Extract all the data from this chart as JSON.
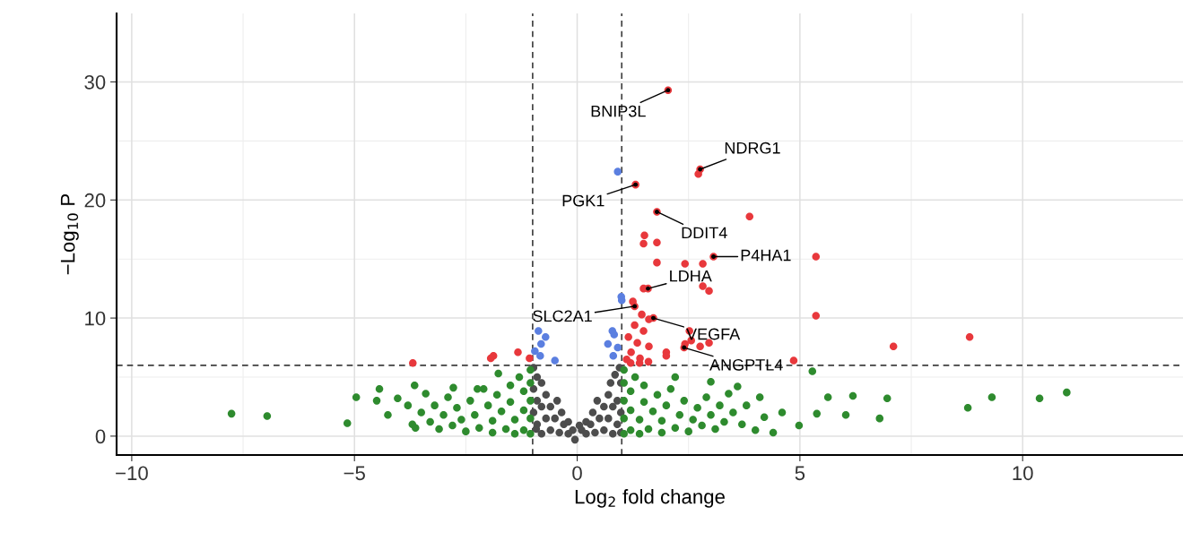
{
  "chart_data": {
    "type": "scatter",
    "xlabel": "Log$_{2}$ fold change",
    "ylabel": "−Log$_{10}$ P",
    "xlim": [
      -10.34,
      13.6
    ],
    "ylim": [
      -1.6,
      35.8
    ],
    "xticks": [
      {
        "value": -10,
        "label": "−10"
      },
      {
        "value": -5,
        "label": "−5"
      },
      0,
      5,
      10
    ],
    "yticks": [
      0,
      10,
      20,
      30
    ],
    "grid": true,
    "legend": false,
    "marker": "circle",
    "ref_lines": [
      {
        "axis": "x",
        "value": -1,
        "line_style": "dashed",
        "color": "#404040"
      },
      {
        "axis": "x",
        "value": 1,
        "line_style": "dashed",
        "color": "#404040"
      },
      {
        "axis": "y",
        "value": 6,
        "line_style": "dashed",
        "color": "#404040"
      }
    ],
    "series": [
      {
        "color": "#4d4d4d",
        "x": [
          -0.92,
          -0.98,
          -0.98,
          -0.98,
          -0.9,
          -0.9,
          -0.9,
          -0.8,
          -0.8,
          -0.8,
          -0.7,
          -0.7,
          -0.6,
          -0.6,
          -0.5,
          -0.45,
          -0.4,
          -0.35,
          -0.3,
          -0.2,
          -0.2,
          -0.1,
          -0.05,
          0.05,
          0.1,
          0.2,
          0.2,
          0.3,
          0.35,
          0.4,
          0.45,
          0.5,
          0.6,
          0.6,
          0.7,
          0.7,
          0.75,
          0.8,
          0.8,
          0.85,
          0.9,
          0.9,
          0.95,
          0.98,
          0.98,
          0.98
        ],
        "values": [
          0.6,
          2,
          4,
          5.8,
          1,
          3,
          5,
          0.2,
          2.5,
          4.5,
          1.5,
          3.5,
          0.5,
          2.5,
          1.5,
          3,
          0.3,
          2,
          1,
          0.2,
          1.2,
          0.5,
          -0.3,
          0.9,
          0.5,
          0.2,
          1.2,
          1,
          2,
          0.3,
          3,
          1.5,
          0.5,
          2.5,
          1.5,
          3.5,
          4.5,
          0.2,
          2.5,
          5.2,
          1,
          3,
          5.8,
          0.3,
          2,
          4.5
        ]
      },
      {
        "color": "#2e8b2e",
        "x": [
          -1.05,
          -1.05,
          -1.05,
          -1.05,
          -1.05,
          -1.2,
          -1.2,
          -1.2,
          -1.3,
          -1.4,
          -1.4,
          -1.5,
          -1.5,
          -1.6,
          -1.7,
          -1.8,
          -1.9,
          -1.9,
          -2.0,
          -2.1,
          -2.2,
          -2.3,
          -2.4,
          -2.5,
          -2.6,
          -2.7,
          -2.8,
          -2.9,
          -3.0,
          -3.1,
          -3.2,
          -3.3,
          -3.4,
          -3.5,
          -3.7,
          -3.8,
          -3.63,
          -4.03,
          -4.5,
          -4.25,
          -4.44,
          -3.65,
          -2.78,
          -2.24,
          -1.77,
          -4.96,
          -5.16,
          -7.76,
          -6.96,
          1.05,
          1.05,
          1.05,
          1.05,
          1.05,
          1.2,
          1.2,
          1.2,
          1.3,
          1.4,
          1.4,
          1.5,
          1.5,
          1.6,
          1.7,
          1.8,
          1.9,
          1.9,
          2.0,
          2.1,
          2.2,
          2.3,
          2.4,
          2.5,
          2.6,
          2.7,
          2.8,
          2.9,
          3.0,
          3.1,
          3.2,
          3.3,
          3.4,
          3.5,
          3.7,
          3.8,
          4.0,
          4.2,
          4.4,
          2.2,
          3.0,
          3.6,
          4.1,
          4.6,
          4.98,
          5.38,
          5.28,
          5.63,
          6.19,
          6.03,
          6.96,
          6.79,
          8.77,
          9.31,
          10.38,
          10.99
        ],
        "values": [
          0.2,
          1.5,
          3,
          4.5,
          5.6,
          0.5,
          2.2,
          3.8,
          5.0,
          0.2,
          1.4,
          2.9,
          4.3,
          0.6,
          2.1,
          3.5,
          0.3,
          1.3,
          2.6,
          4.0,
          0.7,
          1.8,
          3.0,
          0.4,
          1.4,
          2.4,
          0.9,
          3.3,
          1.8,
          0.6,
          2.6,
          1.2,
          3.6,
          2.0,
          1.0,
          2.6,
          0.7,
          3.2,
          3.0,
          1.8,
          4.0,
          4.3,
          4.1,
          4.0,
          5.3,
          3.3,
          1.1,
          1.9,
          1.7,
          0.2,
          1.5,
          3,
          4.5,
          5.6,
          0.5,
          2.2,
          3.8,
          5.0,
          0.2,
          1.4,
          2.9,
          4.3,
          0.6,
          2.1,
          3.5,
          0.3,
          1.3,
          2.6,
          4.0,
          0.7,
          1.8,
          3.0,
          0.4,
          1.4,
          2.4,
          0.9,
          3.3,
          1.8,
          0.6,
          2.6,
          1.2,
          3.6,
          2.0,
          1.0,
          2.6,
          0.5,
          1.6,
          0.3,
          5.0,
          4.6,
          4.2,
          3.3,
          2.0,
          0.9,
          1.9,
          5.5,
          3.3,
          3.4,
          1.8,
          3.2,
          1.5,
          2.4,
          3.3,
          3.2,
          3.7
        ]
      },
      {
        "color": "#5b7fe0",
        "x": [
          0.91,
          0.99,
          1.0,
          0.79,
          0.69,
          0.91,
          0.81,
          0.83,
          -0.87,
          -0.71,
          -0.81,
          -0.83,
          -0.5,
          -0.95
        ],
        "values": [
          22.4,
          11.8,
          11.5,
          8.9,
          7.8,
          7.5,
          6.8,
          8.6,
          8.9,
          8.4,
          7.8,
          6.8,
          6.4,
          7.2
        ]
      },
      {
        "color": "#e8383c",
        "x": [
          2.04,
          2.76,
          2.72,
          1.31,
          1.79,
          3.87,
          1.51,
          1.49,
          1.79,
          1.79,
          2.42,
          2.82,
          3.06,
          5.36,
          1.49,
          1.59,
          2.96,
          2.82,
          1.25,
          1.29,
          1.45,
          1.61,
          1.71,
          5.36,
          1.29,
          1.49,
          1.15,
          1.35,
          1.61,
          1.21,
          1.41,
          1.11,
          2.0,
          2.0,
          2.42,
          2.4,
          2.76,
          2.96,
          2.56,
          2.52,
          4.86,
          7.1,
          8.81,
          -3.69,
          -1.94,
          -1.33,
          -1.07,
          -1.88,
          1.2,
          1.4,
          1.6
        ],
        "values": [
          29.3,
          22.6,
          22.2,
          21.3,
          19.0,
          18.6,
          17.0,
          16.3,
          16.4,
          14.7,
          14.6,
          14.6,
          15.2,
          15.2,
          12.5,
          12.5,
          12.3,
          12.7,
          11.4,
          11.0,
          10.3,
          9.9,
          10.0,
          10.2,
          9.4,
          8.9,
          8.4,
          7.9,
          7.6,
          7.1,
          6.6,
          6.5,
          7.1,
          6.8,
          7.8,
          7.5,
          7.6,
          7.9,
          8.1,
          8.9,
          6.4,
          7.6,
          8.4,
          6.2,
          6.6,
          7.1,
          6.6,
          6.8,
          6.2,
          6.2,
          6.3
        ]
      }
    ],
    "annotations": [
      {
        "text": "BNIP3L",
        "x": 2.04,
        "y": 29.3
      },
      {
        "text": "NDRG1",
        "x": 2.76,
        "y": 22.6
      },
      {
        "text": "PGK1",
        "x": 1.31,
        "y": 21.3
      },
      {
        "text": "DDIT4",
        "x": 1.79,
        "y": 19.0
      },
      {
        "text": "P4HA1",
        "x": 3.06,
        "y": 15.2
      },
      {
        "text": "LDHA",
        "x": 1.59,
        "y": 12.5
      },
      {
        "text": "SLC2A1",
        "x": 1.29,
        "y": 11.0
      },
      {
        "text": "VEGFA",
        "x": 1.71,
        "y": 10.0
      },
      {
        "text": "ANGPTL4",
        "x": 2.4,
        "y": 7.5
      }
    ]
  }
}
